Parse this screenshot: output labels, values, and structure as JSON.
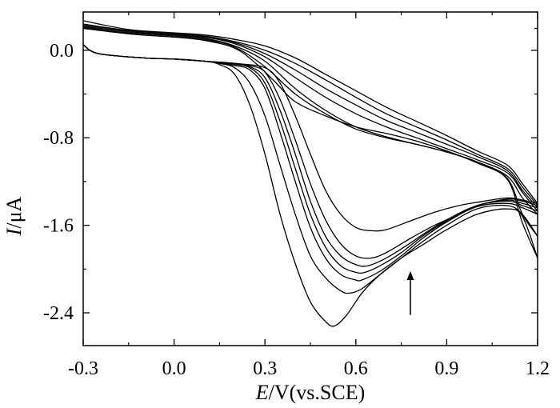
{
  "chart_data": {
    "type": "line",
    "title": "",
    "xlabel": {
      "var": "E",
      "rest": "/V(vs.SCE)"
    },
    "ylabel": {
      "var": "I",
      "rest": "/μA"
    },
    "xlim": [
      -0.3,
      1.2
    ],
    "ylim": [
      -2.7,
      0.35
    ],
    "xticks": [
      -0.3,
      0.0,
      0.3,
      0.6,
      0.9,
      1.2
    ],
    "xtick_labels": [
      "-0.3",
      "0.0",
      "0.3",
      "0.6",
      "0.9",
      "1.2"
    ],
    "yticks": [
      0.0,
      -0.8,
      -1.6,
      -2.4
    ],
    "ytick_labels": [
      "0.0",
      "-0.8",
      "-1.6",
      "-2.4"
    ],
    "grid": false,
    "legend": "none",
    "annotation": {
      "type": "arrow",
      "direction": "up",
      "x": 0.78,
      "y_from": -2.42,
      "y_to": -2.02
    },
    "series": [
      {
        "forward": [
          [
            -0.3,
            0.05
          ],
          [
            -0.25,
            -0.03
          ],
          [
            -0.1,
            -0.07
          ],
          [
            0.0,
            -0.08
          ],
          [
            0.1,
            -0.1
          ],
          [
            0.15,
            -0.13
          ],
          [
            0.2,
            -0.22
          ],
          [
            0.25,
            -0.5
          ],
          [
            0.3,
            -0.95
          ],
          [
            0.35,
            -1.5
          ],
          [
            0.4,
            -1.95
          ],
          [
            0.45,
            -2.3
          ],
          [
            0.5,
            -2.48
          ],
          [
            0.53,
            -2.52
          ],
          [
            0.57,
            -2.42
          ],
          [
            0.62,
            -2.22
          ],
          [
            0.68,
            -2.05
          ],
          [
            0.75,
            -1.9
          ],
          [
            0.82,
            -1.78
          ],
          [
            0.9,
            -1.64
          ],
          [
            1.0,
            -1.5
          ],
          [
            1.1,
            -1.45
          ],
          [
            1.15,
            -1.52
          ],
          [
            1.2,
            -1.9
          ]
        ],
        "reverse": [
          [
            1.2,
            -1.9
          ],
          [
            1.15,
            -1.58
          ],
          [
            1.1,
            -1.18
          ],
          [
            1.0,
            -1.03
          ],
          [
            0.9,
            -0.92
          ],
          [
            0.8,
            -0.83
          ],
          [
            0.7,
            -0.76
          ],
          [
            0.6,
            -0.7
          ],
          [
            0.5,
            -0.6
          ],
          [
            0.4,
            -0.47
          ],
          [
            0.33,
            -0.28
          ],
          [
            0.27,
            -0.12
          ],
          [
            0.2,
            0.02
          ],
          [
            0.1,
            0.09
          ],
          [
            0.0,
            0.12
          ],
          [
            -0.15,
            0.15
          ],
          [
            -0.3,
            0.2
          ]
        ]
      },
      {
        "forward": [
          [
            -0.3,
            0.05
          ],
          [
            -0.25,
            -0.03
          ],
          [
            -0.1,
            -0.07
          ],
          [
            0.0,
            -0.08
          ],
          [
            0.1,
            -0.1
          ],
          [
            0.15,
            -0.12
          ],
          [
            0.2,
            -0.16
          ],
          [
            0.25,
            -0.3
          ],
          [
            0.3,
            -0.6
          ],
          [
            0.35,
            -1.05
          ],
          [
            0.4,
            -1.5
          ],
          [
            0.45,
            -1.88
          ],
          [
            0.5,
            -2.08
          ],
          [
            0.55,
            -2.2
          ],
          [
            0.58,
            -2.22
          ],
          [
            0.62,
            -2.18
          ],
          [
            0.68,
            -2.05
          ],
          [
            0.75,
            -1.9
          ],
          [
            0.82,
            -1.75
          ],
          [
            0.9,
            -1.6
          ],
          [
            1.0,
            -1.45
          ],
          [
            1.1,
            -1.42
          ],
          [
            1.15,
            -1.5
          ],
          [
            1.2,
            -1.7
          ]
        ],
        "reverse": [
          [
            1.2,
            -1.7
          ],
          [
            1.15,
            -1.5
          ],
          [
            1.1,
            -1.17
          ],
          [
            1.0,
            -1.02
          ],
          [
            0.9,
            -0.93
          ],
          [
            0.8,
            -0.86
          ],
          [
            0.7,
            -0.8
          ],
          [
            0.6,
            -0.72
          ],
          [
            0.5,
            -0.58
          ],
          [
            0.4,
            -0.4
          ],
          [
            0.3,
            -0.15
          ],
          [
            0.2,
            0.03
          ],
          [
            0.1,
            0.1
          ],
          [
            0.0,
            0.13
          ],
          [
            -0.15,
            0.16
          ],
          [
            -0.3,
            0.2
          ]
        ]
      },
      {
        "forward": [
          [
            -0.3,
            0.05
          ],
          [
            -0.25,
            -0.03
          ],
          [
            -0.1,
            -0.07
          ],
          [
            0.0,
            -0.08
          ],
          [
            0.1,
            -0.1
          ],
          [
            0.2,
            -0.14
          ],
          [
            0.25,
            -0.18
          ],
          [
            0.3,
            -0.35
          ],
          [
            0.35,
            -0.75
          ],
          [
            0.4,
            -1.2
          ],
          [
            0.45,
            -1.62
          ],
          [
            0.5,
            -1.9
          ],
          [
            0.55,
            -2.05
          ],
          [
            0.6,
            -2.1
          ],
          [
            0.62,
            -2.1
          ],
          [
            0.68,
            -2.02
          ],
          [
            0.75,
            -1.88
          ],
          [
            0.82,
            -1.72
          ],
          [
            0.9,
            -1.57
          ],
          [
            1.0,
            -1.43
          ],
          [
            1.1,
            -1.4
          ],
          [
            1.15,
            -1.44
          ],
          [
            1.2,
            -1.5
          ]
        ],
        "reverse": [
          [
            1.2,
            -1.5
          ],
          [
            1.15,
            -1.35
          ],
          [
            1.1,
            -1.15
          ],
          [
            1.0,
            -1.02
          ],
          [
            0.9,
            -0.93
          ],
          [
            0.8,
            -0.86
          ],
          [
            0.7,
            -0.79
          ],
          [
            0.6,
            -0.7
          ],
          [
            0.5,
            -0.55
          ],
          [
            0.4,
            -0.35
          ],
          [
            0.3,
            -0.1
          ],
          [
            0.2,
            0.04
          ],
          [
            0.1,
            0.11
          ],
          [
            0.0,
            0.14
          ],
          [
            -0.15,
            0.16
          ],
          [
            -0.3,
            0.21
          ]
        ]
      },
      {
        "forward": [
          [
            -0.3,
            0.05
          ],
          [
            -0.25,
            -0.03
          ],
          [
            -0.1,
            -0.07
          ],
          [
            0.0,
            -0.08
          ],
          [
            0.1,
            -0.1
          ],
          [
            0.2,
            -0.13
          ],
          [
            0.25,
            -0.16
          ],
          [
            0.3,
            -0.3
          ],
          [
            0.35,
            -0.65
          ],
          [
            0.4,
            -1.08
          ],
          [
            0.45,
            -1.5
          ],
          [
            0.5,
            -1.8
          ],
          [
            0.55,
            -1.97
          ],
          [
            0.6,
            -2.03
          ],
          [
            0.63,
            -2.03
          ],
          [
            0.68,
            -1.97
          ],
          [
            0.75,
            -1.85
          ],
          [
            0.82,
            -1.7
          ],
          [
            0.9,
            -1.56
          ],
          [
            1.0,
            -1.42
          ],
          [
            1.1,
            -1.38
          ],
          [
            1.15,
            -1.42
          ],
          [
            1.2,
            -1.47
          ]
        ],
        "reverse": [
          [
            1.2,
            -1.47
          ],
          [
            1.15,
            -1.3
          ],
          [
            1.1,
            -1.12
          ],
          [
            1.0,
            -1.0
          ],
          [
            0.9,
            -0.9
          ],
          [
            0.8,
            -0.8
          ],
          [
            0.7,
            -0.7
          ],
          [
            0.6,
            -0.58
          ],
          [
            0.5,
            -0.43
          ],
          [
            0.4,
            -0.25
          ],
          [
            0.3,
            -0.06
          ],
          [
            0.2,
            0.06
          ],
          [
            0.1,
            0.12
          ],
          [
            0.0,
            0.14
          ],
          [
            -0.15,
            0.17
          ],
          [
            -0.3,
            0.22
          ]
        ]
      },
      {
        "forward": [
          [
            -0.3,
            0.05
          ],
          [
            -0.25,
            -0.03
          ],
          [
            -0.1,
            -0.07
          ],
          [
            0.0,
            -0.08
          ],
          [
            0.1,
            -0.1
          ],
          [
            0.2,
            -0.12
          ],
          [
            0.25,
            -0.15
          ],
          [
            0.3,
            -0.25
          ],
          [
            0.35,
            -0.55
          ],
          [
            0.4,
            -0.95
          ],
          [
            0.45,
            -1.38
          ],
          [
            0.5,
            -1.7
          ],
          [
            0.55,
            -1.88
          ],
          [
            0.6,
            -1.96
          ],
          [
            0.64,
            -1.97
          ],
          [
            0.7,
            -1.9
          ],
          [
            0.77,
            -1.78
          ],
          [
            0.84,
            -1.65
          ],
          [
            0.92,
            -1.52
          ],
          [
            1.0,
            -1.42
          ],
          [
            1.1,
            -1.37
          ],
          [
            1.15,
            -1.4
          ],
          [
            1.2,
            -1.44
          ]
        ],
        "reverse": [
          [
            1.2,
            -1.44
          ],
          [
            1.15,
            -1.28
          ],
          [
            1.1,
            -1.1
          ],
          [
            1.0,
            -0.97
          ],
          [
            0.9,
            -0.86
          ],
          [
            0.8,
            -0.75
          ],
          [
            0.7,
            -0.64
          ],
          [
            0.6,
            -0.5
          ],
          [
            0.5,
            -0.35
          ],
          [
            0.4,
            -0.18
          ],
          [
            0.3,
            -0.03
          ],
          [
            0.2,
            0.07
          ],
          [
            0.1,
            0.13
          ],
          [
            0.0,
            0.15
          ],
          [
            -0.15,
            0.18
          ],
          [
            -0.3,
            0.23
          ]
        ]
      },
      {
        "forward": [
          [
            -0.3,
            0.05
          ],
          [
            -0.25,
            -0.03
          ],
          [
            -0.1,
            -0.07
          ],
          [
            0.0,
            -0.08
          ],
          [
            0.1,
            -0.1
          ],
          [
            0.2,
            -0.12
          ],
          [
            0.25,
            -0.14
          ],
          [
            0.3,
            -0.2
          ],
          [
            0.35,
            -0.45
          ],
          [
            0.4,
            -0.82
          ],
          [
            0.45,
            -1.22
          ],
          [
            0.5,
            -1.55
          ],
          [
            0.55,
            -1.77
          ],
          [
            0.6,
            -1.88
          ],
          [
            0.65,
            -1.9
          ],
          [
            0.7,
            -1.85
          ],
          [
            0.78,
            -1.72
          ],
          [
            0.86,
            -1.6
          ],
          [
            0.94,
            -1.5
          ],
          [
            1.0,
            -1.42
          ],
          [
            1.1,
            -1.36
          ],
          [
            1.15,
            -1.38
          ],
          [
            1.2,
            -1.42
          ]
        ],
        "reverse": [
          [
            1.2,
            -1.42
          ],
          [
            1.15,
            -1.25
          ],
          [
            1.1,
            -1.08
          ],
          [
            1.0,
            -0.95
          ],
          [
            0.9,
            -0.82
          ],
          [
            0.8,
            -0.7
          ],
          [
            0.7,
            -0.58
          ],
          [
            0.6,
            -0.43
          ],
          [
            0.5,
            -0.27
          ],
          [
            0.4,
            -0.12
          ],
          [
            0.3,
            0.0
          ],
          [
            0.2,
            0.08
          ],
          [
            0.1,
            0.13
          ],
          [
            0.0,
            0.15
          ],
          [
            -0.15,
            0.18
          ],
          [
            -0.3,
            0.24
          ]
        ]
      },
      {
        "forward": [
          [
            -0.3,
            0.05
          ],
          [
            -0.25,
            -0.03
          ],
          [
            -0.1,
            -0.07
          ],
          [
            0.0,
            -0.08
          ],
          [
            0.1,
            -0.1
          ],
          [
            0.2,
            -0.12
          ],
          [
            0.3,
            -0.16
          ],
          [
            0.35,
            -0.3
          ],
          [
            0.4,
            -0.6
          ],
          [
            0.45,
            -0.95
          ],
          [
            0.5,
            -1.28
          ],
          [
            0.55,
            -1.5
          ],
          [
            0.6,
            -1.62
          ],
          [
            0.65,
            -1.65
          ],
          [
            0.7,
            -1.64
          ],
          [
            0.78,
            -1.56
          ],
          [
            0.86,
            -1.48
          ],
          [
            0.94,
            -1.42
          ],
          [
            1.0,
            -1.39
          ],
          [
            1.1,
            -1.35
          ],
          [
            1.15,
            -1.37
          ],
          [
            1.2,
            -1.4
          ]
        ],
        "reverse": [
          [
            1.2,
            -1.4
          ],
          [
            1.15,
            -1.22
          ],
          [
            1.1,
            -1.05
          ],
          [
            1.0,
            -0.92
          ],
          [
            0.9,
            -0.78
          ],
          [
            0.8,
            -0.65
          ],
          [
            0.7,
            -0.52
          ],
          [
            0.6,
            -0.37
          ],
          [
            0.5,
            -0.22
          ],
          [
            0.4,
            -0.07
          ],
          [
            0.3,
            0.04
          ],
          [
            0.2,
            0.1
          ],
          [
            0.1,
            0.14
          ],
          [
            0.0,
            0.16
          ],
          [
            -0.15,
            0.19
          ],
          [
            -0.3,
            0.27
          ]
        ]
      }
    ]
  }
}
